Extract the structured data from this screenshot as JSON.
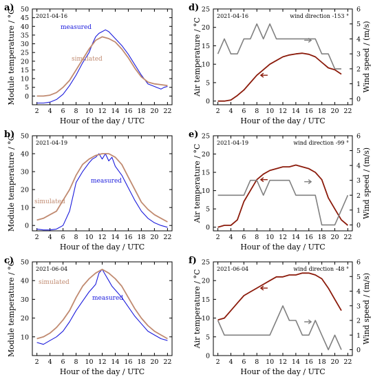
{
  "figure": {
    "colors": {
      "measured": "#1a1adc",
      "simulated": "#c08a70",
      "air_temperature": "#8b1a0a",
      "wind_speed": "#808080",
      "axis": "#000000"
    }
  },
  "chart_data": [
    {
      "panel": "a)",
      "type": "line",
      "date": "2021-04-16",
      "xlabel": "Hour of the day / UTC",
      "ylabel": "Module temperature / °C",
      "xlim": [
        1.3,
        22.7
      ],
      "ylim": [
        -5,
        50
      ],
      "xticks": [
        2,
        4,
        6,
        8,
        10,
        12,
        14,
        16,
        18,
        20,
        22
      ],
      "yticks": [
        0,
        5,
        10,
        15,
        20,
        25,
        30,
        35,
        40,
        45,
        50
      ],
      "annotations": [
        "measured",
        "simulated"
      ],
      "series": [
        {
          "name": "measured",
          "x": [
            2,
            3,
            4,
            5,
            6,
            7,
            8,
            9,
            10,
            10.5,
            11,
            11.5,
            12,
            12.5,
            13,
            13.5,
            14,
            15,
            16,
            17,
            18,
            19,
            20,
            21,
            21.5,
            22
          ],
          "y": [
            -4,
            -4,
            -3.5,
            -2,
            1,
            6,
            12,
            19,
            25,
            30,
            34,
            36,
            37,
            38,
            37,
            35,
            33,
            29,
            24,
            18,
            12,
            7,
            5.5,
            4,
            5,
            5.5
          ]
        },
        {
          "name": "simulated",
          "x": [
            2,
            3,
            4,
            5,
            6,
            7,
            8,
            9,
            10,
            11,
            12,
            13,
            14,
            15,
            16,
            17,
            18,
            19,
            20,
            21,
            22
          ],
          "y": [
            0,
            0,
            0.5,
            2,
            5,
            9,
            15,
            21,
            27,
            32,
            34,
            33,
            31,
            27,
            22,
            16,
            11,
            8,
            7,
            6.5,
            6
          ]
        }
      ]
    },
    {
      "panel": "b)",
      "type": "line",
      "date": "2021-04-19",
      "xlabel": "Hour of the day / UTC",
      "ylabel": "Module temperature / °C",
      "xlim": [
        1.3,
        22.7
      ],
      "ylim": [
        -3,
        50
      ],
      "xticks": [
        2,
        4,
        6,
        8,
        10,
        12,
        14,
        16,
        18,
        20,
        22
      ],
      "yticks": [
        0,
        10,
        20,
        30,
        40,
        50
      ],
      "annotations": [
        "simulated",
        "measured"
      ],
      "series": [
        {
          "name": "measured",
          "x": [
            2,
            3,
            4,
            5,
            6,
            7,
            8,
            9,
            10,
            10.5,
            11,
            11.5,
            12,
            12.5,
            13,
            13.5,
            14,
            15,
            16,
            17,
            18,
            19,
            20,
            21,
            22
          ],
          "y": [
            -2,
            -2.5,
            -2.5,
            -2,
            0,
            8,
            24,
            30,
            35,
            37,
            38,
            40,
            37,
            40,
            36,
            38,
            33,
            28,
            21,
            14,
            8,
            4,
            1.5,
            0,
            -1
          ]
        },
        {
          "name": "simulated",
          "x": [
            2,
            3,
            4,
            5,
            6,
            7,
            8,
            9,
            10,
            11,
            12,
            13,
            14,
            15,
            16,
            17,
            18,
            19,
            20,
            21,
            22
          ],
          "y": [
            3,
            4,
            6,
            8,
            14,
            20,
            28,
            34,
            37,
            39,
            40,
            40,
            38,
            34,
            27,
            20,
            13,
            9,
            6,
            4,
            2
          ]
        }
      ]
    },
    {
      "panel": "c)",
      "type": "line",
      "date": "2021-06-04",
      "xlabel": "Hour of the day / UTC",
      "ylabel": "Module temperature / °C",
      "xlim": [
        1.3,
        22.7
      ],
      "ylim": [
        0,
        50
      ],
      "xticks": [
        2,
        4,
        6,
        8,
        10,
        12,
        14,
        16,
        18,
        20,
        22
      ],
      "yticks": [
        10,
        20,
        30,
        40,
        50
      ],
      "annotations": [
        "simulated",
        "measured"
      ],
      "series": [
        {
          "name": "measured",
          "x": [
            2,
            3,
            4,
            5,
            6,
            7,
            8,
            9,
            10,
            10.5,
            11,
            11.5,
            12,
            12.5,
            13,
            13.5,
            14,
            15,
            16,
            17,
            18,
            19,
            20,
            21,
            22
          ],
          "y": [
            7,
            6,
            8,
            10,
            13,
            18,
            24,
            29,
            34,
            36,
            38,
            44,
            46,
            43,
            40,
            37,
            35,
            31,
            26,
            21,
            17,
            13,
            11,
            9,
            8
          ]
        },
        {
          "name": "simulated",
          "x": [
            2,
            3,
            4,
            5,
            6,
            7,
            8,
            9,
            10,
            11,
            12,
            13,
            14,
            15,
            16,
            17,
            18,
            19,
            20,
            21,
            22
          ],
          "y": [
            9,
            10,
            12,
            15,
            19,
            24,
            31,
            37,
            41,
            44,
            46,
            44,
            41,
            37,
            31,
            25,
            20,
            16,
            13,
            11,
            9
          ]
        }
      ]
    },
    {
      "panel": "d)",
      "type": "line",
      "date": "2021-04-16",
      "wind_direction": "wind direction -153 °",
      "xlabel": "Hour of the day / UTC",
      "ylabel": "Air temperature / °C",
      "y2label": "Wind speed / (m/s)",
      "xlim": [
        1.3,
        22.7
      ],
      "ylim": [
        -1,
        25
      ],
      "y2lim": [
        -0.4,
        6
      ],
      "xticks": [
        2,
        4,
        6,
        8,
        10,
        12,
        14,
        16,
        18,
        20,
        22
      ],
      "yticks": [
        0,
        5,
        10,
        15,
        20,
        25
      ],
      "y2ticks": [
        0,
        1,
        2,
        3,
        4,
        5,
        6
      ],
      "series": [
        {
          "name": "air temperature",
          "axis": "left",
          "x": [
            2,
            3,
            4,
            5,
            6,
            7,
            8,
            9,
            10,
            11,
            12,
            13,
            14,
            15,
            16,
            17,
            18,
            19,
            20,
            21
          ],
          "y": [
            0,
            0,
            0.3,
            1.5,
            3,
            5,
            7,
            8.5,
            10,
            11,
            12,
            12.5,
            12.8,
            13,
            12.7,
            12,
            10.5,
            9,
            8.5,
            7.3
          ]
        },
        {
          "name": "wind speed",
          "axis": "right",
          "x": [
            2,
            3,
            4,
            5,
            6,
            7,
            8,
            9,
            10,
            11,
            12,
            13,
            14,
            15,
            16,
            17,
            18,
            19,
            20,
            21
          ],
          "y": [
            3,
            4,
            3,
            3,
            4,
            4,
            5,
            4,
            5,
            4,
            4,
            4,
            4,
            4,
            4,
            4,
            3,
            3,
            2,
            2
          ]
        }
      ]
    },
    {
      "panel": "e)",
      "type": "line",
      "date": "2021-04-19",
      "wind_direction": "wind direction -99 °",
      "xlabel": "Hour of the day / UTC",
      "ylabel": "Air temperature / °C",
      "y2label": "Wind speed / (m/s)",
      "xlim": [
        1.3,
        22.7
      ],
      "ylim": [
        -1,
        25
      ],
      "y2lim": [
        -0.4,
        6
      ],
      "xticks": [
        2,
        4,
        6,
        8,
        10,
        12,
        14,
        16,
        18,
        20,
        22
      ],
      "yticks": [
        0,
        5,
        10,
        15,
        20,
        25
      ],
      "y2ticks": [
        0,
        1,
        2,
        3,
        4,
        5,
        6
      ],
      "series": [
        {
          "name": "air temperature",
          "axis": "left",
          "x": [
            2,
            3,
            4,
            5,
            6,
            7,
            8,
            9,
            10,
            11,
            12,
            13,
            14,
            15,
            16,
            17,
            18,
            19,
            20,
            21,
            22
          ],
          "y": [
            0,
            0.5,
            0.5,
            2,
            7,
            10,
            13,
            14.5,
            15.5,
            16,
            16.5,
            16.5,
            17,
            16.5,
            16,
            15,
            13,
            8,
            5,
            2,
            0.5
          ]
        },
        {
          "name": "wind speed",
          "axis": "right",
          "x": [
            2,
            3,
            4,
            5,
            6,
            7,
            8,
            9,
            10,
            11,
            12,
            13,
            14,
            15,
            16,
            17,
            18,
            19,
            20,
            21,
            22
          ],
          "y": [
            2,
            2,
            2,
            2,
            2,
            3,
            3,
            2,
            3,
            3,
            3,
            3,
            2,
            2,
            2,
            2,
            0,
            0,
            0,
            1,
            2
          ]
        }
      ]
    },
    {
      "panel": "f)",
      "type": "line",
      "date": "2021-06-04",
      "wind_direction": "wind direction -48 °",
      "xlabel": "Hour of the day / UTC",
      "ylabel": "Air temperature / °C",
      "y2label": "Wind speed / (m/s)",
      "xlim": [
        1.3,
        22.7
      ],
      "ylim": [
        0,
        25
      ],
      "y2lim": [
        -0.4,
        6
      ],
      "xticks": [
        2,
        4,
        6,
        8,
        10,
        12,
        14,
        16,
        18,
        20,
        22
      ],
      "yticks": [
        0,
        5,
        10,
        15,
        20,
        25
      ],
      "y2ticks": [
        0,
        1,
        2,
        3,
        4,
        5,
        6
      ],
      "series": [
        {
          "name": "air temperature",
          "axis": "left",
          "x": [
            2,
            3,
            4,
            5,
            6,
            7,
            8,
            9,
            10,
            11,
            12,
            13,
            14,
            15,
            16,
            17,
            18,
            19,
            20,
            21
          ],
          "y": [
            9.5,
            10,
            12,
            14,
            16,
            17,
            18,
            19,
            20,
            21,
            21,
            21.5,
            21.5,
            22,
            22,
            21.5,
            20.5,
            18,
            15,
            12
          ]
        },
        {
          "name": "wind speed",
          "axis": "right",
          "x": [
            2,
            3,
            4,
            5,
            6,
            7,
            8,
            9,
            10,
            11,
            12,
            13,
            14,
            15,
            16,
            17,
            18,
            19,
            20,
            21
          ],
          "y": [
            2,
            1,
            1,
            1,
            1,
            1,
            1,
            1,
            1,
            2,
            3,
            2,
            2,
            1,
            1,
            2,
            1,
            0,
            1,
            0
          ]
        }
      ]
    }
  ]
}
